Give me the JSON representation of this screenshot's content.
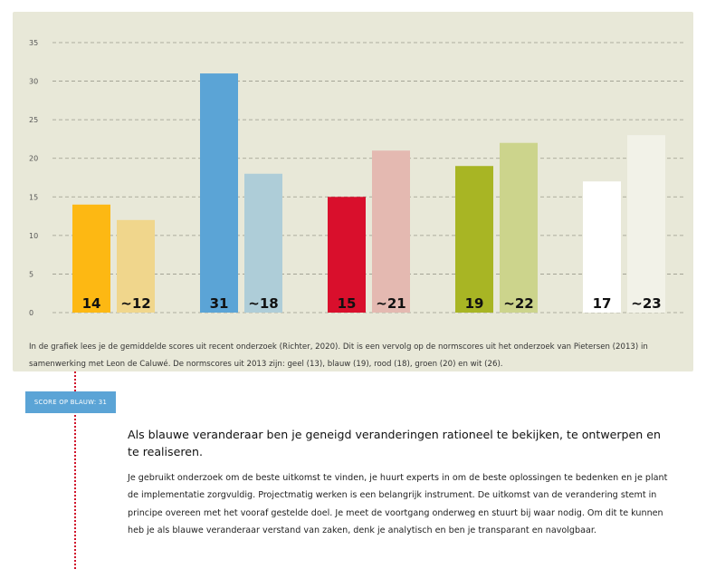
{
  "chart_data": {
    "type": "bar",
    "ylim": [
      0,
      35
    ],
    "yticks": [
      "0",
      "5",
      "10",
      "15",
      "20",
      "25",
      "30",
      "35"
    ],
    "grid": true,
    "groups": [
      {
        "color": "geel",
        "bars": [
          {
            "value": 14,
            "label": "14",
            "color": "#fdb813",
            "label_color": "#111111"
          },
          {
            "value": 12,
            "label": "~12",
            "color": "#f0d68c",
            "label_color": "#111111"
          }
        ]
      },
      {
        "color": "blauw",
        "bars": [
          {
            "value": 31,
            "label": "31",
            "color": "#5ba4d6",
            "label_color": "#111111"
          },
          {
            "value": 18,
            "label": "~18",
            "color": "#aecdd8",
            "label_color": "#111111"
          }
        ]
      },
      {
        "color": "rood",
        "bars": [
          {
            "value": 15,
            "label": "15",
            "color": "#d90f2c",
            "label_color": "#111111"
          },
          {
            "value": 21,
            "label": "~21",
            "color": "#e4b9b1",
            "label_color": "#111111"
          }
        ]
      },
      {
        "color": "groen",
        "bars": [
          {
            "value": 19,
            "label": "19",
            "color": "#a8b524",
            "label_color": "#111111"
          },
          {
            "value": 22,
            "label": "~22",
            "color": "#ccd48c",
            "label_color": "#111111"
          }
        ]
      },
      {
        "color": "wit",
        "bars": [
          {
            "value": 17,
            "label": "17",
            "color": "#ffffff",
            "label_color": "#111111"
          },
          {
            "value": 23,
            "label": "~23",
            "color": "#f2f2e8",
            "label_color": "#111111"
          }
        ]
      }
    ]
  },
  "caption": "In de grafiek lees je de gemiddelde scores uit recent onderzoek (Richter, 2020). Dit is een vervolg op de normscores uit het onderzoek van Pietersen (2013) in samenwerking met Leon de Caluwé. De normscores uit 2013 zijn: geel (13), blauw (19), rood (18), groen (20) en wit (26).",
  "badge": "Score op blauw: 31",
  "heading": "Als blauwe veranderaar ben je geneigd veranderingen rationeel te bekijken, te ontwerpen en te realiseren.",
  "body": "Je gebruikt onderzoek om de beste uitkomst te vinden, je huurt experts in om de beste oplossingen te bedenken en je plant de implementatie zorgvuldig. Projectmatig werken is een belangrijk instrument. De uitkomst van de verandering stemt in principe overeen met het vooraf gestelde doel. Je meet de voortgang onderweg en stuurt bij waar nodig. Om dit te kunnen heb je als blauwe veranderaar verstand van zaken, denk je analytisch en ben je transparant en navolgbaar.",
  "colors": {
    "panel": "#e8e8d8",
    "badge": "#5ba4d6",
    "dotline": "#d0102a"
  }
}
